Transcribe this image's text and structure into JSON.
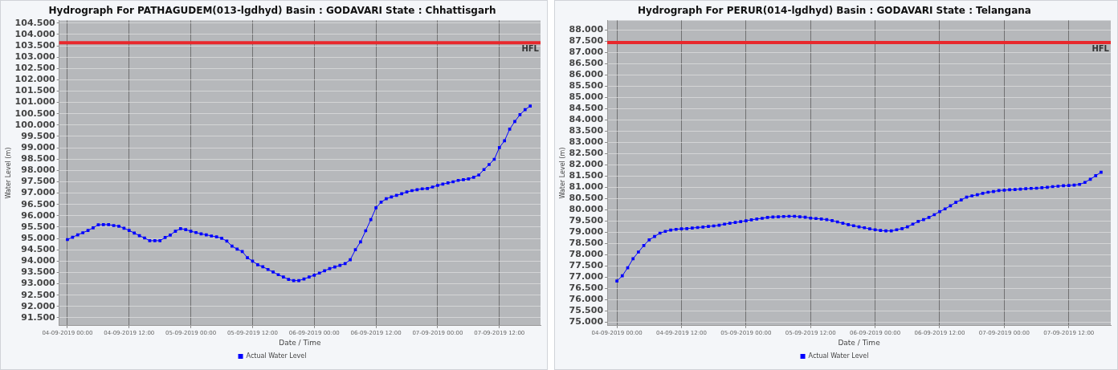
{
  "chart_data": [
    {
      "type": "line",
      "title": "Hydrograph For PATHAGUDEM(013-lgdhyd) Basin : GODAVARI State : Chhattisgarh",
      "xlabel": "Date / Time",
      "ylabel": "Water Level (m)",
      "x": [
        "2019-09-04T00:00",
        "2019-09-04T01:00",
        "2019-09-04T02:00",
        "2019-09-04T03:00",
        "2019-09-04T04:00",
        "2019-09-04T05:00",
        "2019-09-04T06:00",
        "2019-09-04T07:00",
        "2019-09-04T08:00",
        "2019-09-04T09:00",
        "2019-09-04T10:00",
        "2019-09-04T11:00",
        "2019-09-04T12:00",
        "2019-09-04T13:00",
        "2019-09-04T14:00",
        "2019-09-04T15:00",
        "2019-09-04T16:00",
        "2019-09-04T17:00",
        "2019-09-04T18:00",
        "2019-09-04T19:00",
        "2019-09-04T20:00",
        "2019-09-04T21:00",
        "2019-09-04T22:00",
        "2019-09-04T23:00",
        "2019-09-05T00:00",
        "2019-09-05T01:00",
        "2019-09-05T02:00",
        "2019-09-05T03:00",
        "2019-09-05T04:00",
        "2019-09-05T05:00",
        "2019-09-05T06:00",
        "2019-09-05T07:00",
        "2019-09-05T08:00",
        "2019-09-05T09:00",
        "2019-09-05T10:00",
        "2019-09-05T11:00",
        "2019-09-05T12:00",
        "2019-09-05T13:00",
        "2019-09-05T14:00",
        "2019-09-05T15:00",
        "2019-09-05T16:00",
        "2019-09-05T17:00",
        "2019-09-05T18:00",
        "2019-09-05T19:00",
        "2019-09-05T20:00",
        "2019-09-05T21:00",
        "2019-09-05T22:00",
        "2019-09-05T23:00",
        "2019-09-06T00:00",
        "2019-09-06T01:00",
        "2019-09-06T02:00",
        "2019-09-06T03:00",
        "2019-09-06T04:00",
        "2019-09-06T05:00",
        "2019-09-06T06:00",
        "2019-09-06T07:00",
        "2019-09-06T08:00",
        "2019-09-06T09:00",
        "2019-09-06T10:00",
        "2019-09-06T11:00",
        "2019-09-06T12:00",
        "2019-09-06T13:00",
        "2019-09-06T14:00",
        "2019-09-06T15:00",
        "2019-09-06T16:00",
        "2019-09-06T17:00",
        "2019-09-06T18:00",
        "2019-09-06T19:00",
        "2019-09-06T20:00",
        "2019-09-06T21:00",
        "2019-09-06T22:00",
        "2019-09-06T23:00",
        "2019-09-07T00:00",
        "2019-09-07T01:00",
        "2019-09-07T02:00",
        "2019-09-07T03:00",
        "2019-09-07T04:00",
        "2019-09-07T05:00",
        "2019-09-07T06:00",
        "2019-09-07T07:00",
        "2019-09-07T08:00",
        "2019-09-07T09:00",
        "2019-09-07T10:00",
        "2019-09-07T11:00",
        "2019-09-07T12:00",
        "2019-09-07T13:00",
        "2019-09-07T14:00",
        "2019-09-07T15:00",
        "2019-09-07T16:00",
        "2019-09-07T17:00",
        "2019-09-07T18:00"
      ],
      "series": [
        {
          "name": "Actual Water Level",
          "color": "#0000ff",
          "values": [
            94.95,
            95.05,
            95.16,
            95.25,
            95.35,
            95.47,
            95.6,
            95.61,
            95.61,
            95.57,
            95.54,
            95.45,
            95.35,
            95.24,
            95.12,
            95.02,
            94.9,
            94.9,
            94.9,
            95.04,
            95.15,
            95.32,
            95.43,
            95.39,
            95.32,
            95.26,
            95.2,
            95.16,
            95.11,
            95.07,
            95.01,
            94.88,
            94.66,
            94.53,
            94.42,
            94.15,
            94.0,
            93.84,
            93.75,
            93.63,
            93.52,
            93.4,
            93.3,
            93.19,
            93.14,
            93.14,
            93.21,
            93.3,
            93.38,
            93.47,
            93.57,
            93.67,
            93.74,
            93.81,
            93.89,
            94.06,
            94.5,
            94.85,
            95.34,
            95.83,
            96.35,
            96.6,
            96.75,
            96.83,
            96.9,
            96.97,
            97.05,
            97.11,
            97.15,
            97.19,
            97.2,
            97.27,
            97.34,
            97.4,
            97.45,
            97.5,
            97.56,
            97.59,
            97.63,
            97.7,
            97.8,
            98.04,
            98.26,
            98.49,
            99.01,
            99.31,
            99.82,
            100.16,
            100.46,
            100.68,
            100.84
          ]
        }
      ],
      "xlim": [
        "2019-09-03T22:24",
        "2019-09-07T20:00"
      ],
      "xticks": [
        {
          "value": "2019-09-04T00:00",
          "label": "04-09-2019 00:00"
        },
        {
          "value": "2019-09-04T12:00",
          "label": "04-09-2019 12:00"
        },
        {
          "value": "2019-09-05T00:00",
          "label": "05-09-2019 00:00"
        },
        {
          "value": "2019-09-05T12:00",
          "label": "05-09-2019 12:00"
        },
        {
          "value": "2019-09-06T00:00",
          "label": "06-09-2019 00:00"
        },
        {
          "value": "2019-09-06T12:00",
          "label": "06-09-2019 12:00"
        },
        {
          "value": "2019-09-07T00:00",
          "label": "07-09-2019 00:00"
        },
        {
          "value": "2019-09-07T12:00",
          "label": "07-09-2019 12:00"
        }
      ],
      "ylim": [
        91.15,
        104.62
      ],
      "yticks": [
        {
          "value": 91.5,
          "label": "91.500"
        },
        {
          "value": 92,
          "label": "92.000"
        },
        {
          "value": 92.5,
          "label": "92.500"
        },
        {
          "value": 93,
          "label": "93.000"
        },
        {
          "value": 93.5,
          "label": "93.500"
        },
        {
          "value": 94,
          "label": "94.000"
        },
        {
          "value": 94.5,
          "label": "94.500"
        },
        {
          "value": 95,
          "label": "95.000"
        },
        {
          "value": 95.5,
          "label": "95.500"
        },
        {
          "value": 96,
          "label": "96.000"
        },
        {
          "value": 96.5,
          "label": "96.500"
        },
        {
          "value": 97,
          "label": "97.000"
        },
        {
          "value": 97.5,
          "label": "97.500"
        },
        {
          "value": 98,
          "label": "98.000"
        },
        {
          "value": 98.5,
          "label": "98.500"
        },
        {
          "value": 99,
          "label": "99.000"
        },
        {
          "value": 99.5,
          "label": "99.500"
        },
        {
          "value": 100,
          "label": "100.000"
        },
        {
          "value": 100.5,
          "label": "100.500"
        },
        {
          "value": 101,
          "label": "101.000"
        },
        {
          "value": 101.5,
          "label": "101.500"
        },
        {
          "value": 102,
          "label": "102.000"
        },
        {
          "value": 102.5,
          "label": "102.500"
        },
        {
          "value": 103,
          "label": "103.000"
        },
        {
          "value": 103.5,
          "label": "103.500"
        },
        {
          "value": 104,
          "label": "104.000"
        },
        {
          "value": 104.5,
          "label": "104.500"
        }
      ],
      "ref_lines": [
        {
          "axis": "y",
          "value": 103.63,
          "label": "HFL",
          "color": "#e8282c"
        }
      ],
      "grid": true,
      "legend": "bottom",
      "marker": "square",
      "line_style": "solid"
    },
    {
      "type": "line",
      "title": "Hydrograph For PERUR(014-lgdhyd) Basin : GODAVARI State : Telangana",
      "xlabel": "Date / Time",
      "ylabel": "Water Level (m)",
      "x": [
        "2019-09-04T00:00",
        "2019-09-04T01:00",
        "2019-09-04T02:00",
        "2019-09-04T03:00",
        "2019-09-04T04:00",
        "2019-09-04T05:00",
        "2019-09-04T06:00",
        "2019-09-04T07:00",
        "2019-09-04T08:00",
        "2019-09-04T09:00",
        "2019-09-04T10:00",
        "2019-09-04T11:00",
        "2019-09-04T12:00",
        "2019-09-04T13:00",
        "2019-09-04T14:00",
        "2019-09-04T15:00",
        "2019-09-04T16:00",
        "2019-09-04T17:00",
        "2019-09-04T18:00",
        "2019-09-04T19:00",
        "2019-09-04T20:00",
        "2019-09-04T21:00",
        "2019-09-04T22:00",
        "2019-09-04T23:00",
        "2019-09-05T00:00",
        "2019-09-05T01:00",
        "2019-09-05T02:00",
        "2019-09-05T03:00",
        "2019-09-05T04:00",
        "2019-09-05T05:00",
        "2019-09-05T06:00",
        "2019-09-05T07:00",
        "2019-09-05T08:00",
        "2019-09-05T09:00",
        "2019-09-05T10:00",
        "2019-09-05T11:00",
        "2019-09-05T12:00",
        "2019-09-05T13:00",
        "2019-09-05T14:00",
        "2019-09-05T15:00",
        "2019-09-05T16:00",
        "2019-09-05T17:00",
        "2019-09-05T18:00",
        "2019-09-05T19:00",
        "2019-09-05T20:00",
        "2019-09-05T21:00",
        "2019-09-05T22:00",
        "2019-09-05T23:00",
        "2019-09-06T00:00",
        "2019-09-06T01:00",
        "2019-09-06T02:00",
        "2019-09-06T03:00",
        "2019-09-06T04:00",
        "2019-09-06T05:00",
        "2019-09-06T06:00",
        "2019-09-06T07:00",
        "2019-09-06T08:00",
        "2019-09-06T09:00",
        "2019-09-06T10:00",
        "2019-09-06T11:00",
        "2019-09-06T12:00",
        "2019-09-06T13:00",
        "2019-09-06T14:00",
        "2019-09-06T15:00",
        "2019-09-06T16:00",
        "2019-09-06T17:00",
        "2019-09-06T18:00",
        "2019-09-06T19:00",
        "2019-09-06T20:00",
        "2019-09-06T21:00",
        "2019-09-06T22:00",
        "2019-09-06T23:00",
        "2019-09-07T00:00",
        "2019-09-07T01:00",
        "2019-09-07T02:00",
        "2019-09-07T03:00",
        "2019-09-07T04:00",
        "2019-09-07T05:00",
        "2019-09-07T06:00",
        "2019-09-07T07:00",
        "2019-09-07T08:00",
        "2019-09-07T09:00",
        "2019-09-07T10:00",
        "2019-09-07T11:00",
        "2019-09-07T12:00",
        "2019-09-07T13:00",
        "2019-09-07T14:00",
        "2019-09-07T15:00",
        "2019-09-07T16:00",
        "2019-09-07T17:00",
        "2019-09-07T18:00"
      ],
      "series": [
        {
          "name": "Actual Water Level",
          "color": "#0000ff",
          "values": [
            76.82,
            77.05,
            77.41,
            77.81,
            78.11,
            78.4,
            78.65,
            78.8,
            78.95,
            79.03,
            79.09,
            79.12,
            79.14,
            79.15,
            79.18,
            79.2,
            79.22,
            79.25,
            79.27,
            79.3,
            79.35,
            79.39,
            79.43,
            79.46,
            79.5,
            79.54,
            79.58,
            79.61,
            79.65,
            79.67,
            79.68,
            79.69,
            79.7,
            79.7,
            79.68,
            79.66,
            79.62,
            79.6,
            79.58,
            79.55,
            79.51,
            79.45,
            79.39,
            79.33,
            79.28,
            79.23,
            79.19,
            79.14,
            79.1,
            79.07,
            79.05,
            79.05,
            79.1,
            79.15,
            79.23,
            79.35,
            79.47,
            79.55,
            79.65,
            79.77,
            79.91,
            80.03,
            80.17,
            80.32,
            80.43,
            80.55,
            80.61,
            80.66,
            80.72,
            80.77,
            80.8,
            80.85,
            80.86,
            80.88,
            80.89,
            80.91,
            80.93,
            80.94,
            80.95,
            80.97,
            80.99,
            81.02,
            81.04,
            81.06,
            81.07,
            81.09,
            81.12,
            81.21,
            81.35,
            81.51,
            81.66
          ]
        }
      ],
      "xlim": [
        "2019-09-03T22:12",
        "2019-09-07T19:48"
      ],
      "xticks": [
        {
          "value": "2019-09-04T00:00",
          "label": "04-09-2019 00:00"
        },
        {
          "value": "2019-09-04T12:00",
          "label": "04-09-2019 12:00"
        },
        {
          "value": "2019-09-05T00:00",
          "label": "05-09-2019 00:00"
        },
        {
          "value": "2019-09-05T12:00",
          "label": "05-09-2019 12:00"
        },
        {
          "value": "2019-09-06T00:00",
          "label": "06-09-2019 00:00"
        },
        {
          "value": "2019-09-06T12:00",
          "label": "06-09-2019 12:00"
        },
        {
          "value": "2019-09-07T00:00",
          "label": "07-09-2019 00:00"
        },
        {
          "value": "2019-09-07T12:00",
          "label": "07-09-2019 12:00"
        }
      ],
      "ylim": [
        74.83,
        88.42
      ],
      "yticks": [
        {
          "value": 75,
          "label": "75.000"
        },
        {
          "value": 75.5,
          "label": "75.500"
        },
        {
          "value": 76,
          "label": "76.000"
        },
        {
          "value": 76.5,
          "label": "76.500"
        },
        {
          "value": 77,
          "label": "77.000"
        },
        {
          "value": 77.5,
          "label": "77.500"
        },
        {
          "value": 78,
          "label": "78.000"
        },
        {
          "value": 78.5,
          "label": "78.500"
        },
        {
          "value": 79,
          "label": "79.000"
        },
        {
          "value": 79.5,
          "label": "79.500"
        },
        {
          "value": 80,
          "label": "80.000"
        },
        {
          "value": 80.5,
          "label": "80.500"
        },
        {
          "value": 81,
          "label": "81.000"
        },
        {
          "value": 81.5,
          "label": "81.500"
        },
        {
          "value": 82,
          "label": "82.000"
        },
        {
          "value": 82.5,
          "label": "82.500"
        },
        {
          "value": 83,
          "label": "83.000"
        },
        {
          "value": 83.5,
          "label": "83.500"
        },
        {
          "value": 84,
          "label": "84.000"
        },
        {
          "value": 84.5,
          "label": "84.500"
        },
        {
          "value": 85,
          "label": "85.000"
        },
        {
          "value": 85.5,
          "label": "85.500"
        },
        {
          "value": 86,
          "label": "86.000"
        },
        {
          "value": 86.5,
          "label": "86.500"
        },
        {
          "value": 87,
          "label": "87.000"
        },
        {
          "value": 87.5,
          "label": "87.500"
        },
        {
          "value": 88,
          "label": "88.000"
        }
      ],
      "ref_lines": [
        {
          "axis": "y",
          "value": 87.43,
          "label": "HFL",
          "color": "#e8282c"
        }
      ],
      "grid": true,
      "legend": "bottom",
      "marker": "square",
      "line_style": "solid"
    }
  ]
}
